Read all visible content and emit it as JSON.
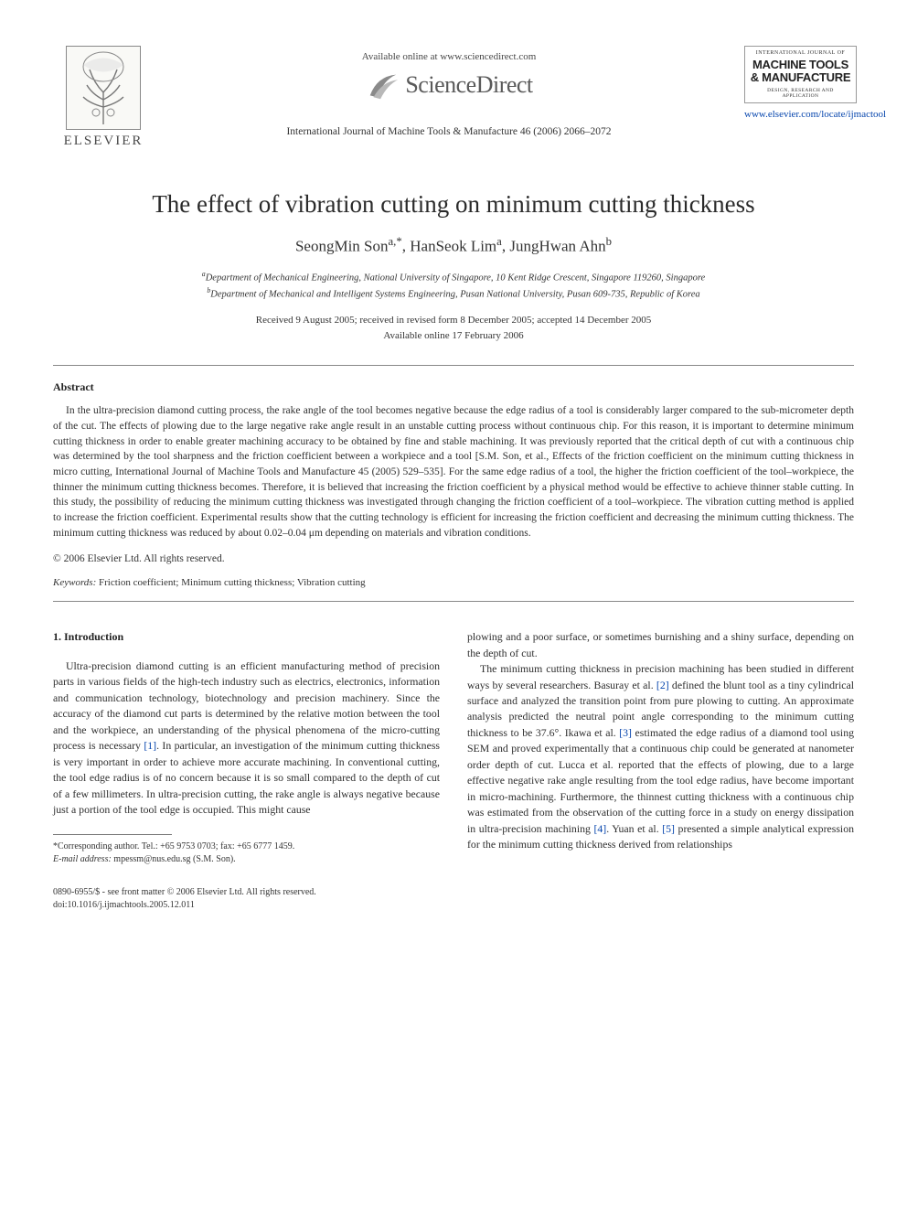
{
  "header": {
    "publisher_name": "ELSEVIER",
    "available_online": "Available online at www.sciencedirect.com",
    "sciencedirect": "ScienceDirect",
    "citation": "International Journal of Machine Tools & Manufacture 46 (2006) 2066–2072",
    "journal_cover": {
      "topline": "INTERNATIONAL JOURNAL OF",
      "title": "MACHINE TOOLS & MANUFACTURE",
      "subline": "DESIGN, RESEARCH AND APPLICATION"
    },
    "locate_url": "www.elsevier.com/locate/ijmactool"
  },
  "article": {
    "title": "The effect of vibration cutting on minimum cutting thickness",
    "authors_html": "SeongMin Son<sup>a,*</sup>, HanSeok Lim<sup>a</sup>, JungHwan Ahn<sup>b</sup>",
    "affiliations": {
      "a": "Department of Mechanical Engineering, National University of Singapore, 10 Kent Ridge Crescent, Singapore 119260, Singapore",
      "b": "Department of Mechanical and Intelligent Systems Engineering, Pusan National University, Pusan 609-735, Republic of Korea"
    },
    "dates": {
      "line1": "Received 9 August 2005; received in revised form 8 December 2005; accepted 14 December 2005",
      "line2": "Available online 17 February 2006"
    }
  },
  "abstract": {
    "heading": "Abstract",
    "body": "In the ultra-precision diamond cutting process, the rake angle of the tool becomes negative because the edge radius of a tool is considerably larger compared to the sub-micrometer depth of the cut. The effects of plowing due to the large negative rake angle result in an unstable cutting process without continuous chip. For this reason, it is important to determine minimum cutting thickness in order to enable greater machining accuracy to be obtained by fine and stable machining. It was previously reported that the critical depth of cut with a continuous chip was determined by the tool sharpness and the friction coefficient between a workpiece and a tool [S.M. Son, et al., Effects of the friction coefficient on the minimum cutting thickness in micro cutting, International Journal of Machine Tools and Manufacture 45 (2005) 529–535]. For the same edge radius of a tool, the higher the friction coefficient of the tool–workpiece, the thinner the minimum cutting thickness becomes. Therefore, it is believed that increasing the friction coefficient by a physical method would be effective to achieve thinner stable cutting. In this study, the possibility of reducing the minimum cutting thickness was investigated through changing the friction coefficient of a tool–workpiece. The vibration cutting method is applied to increase the friction coefficient. Experimental results show that the cutting technology is efficient for increasing the friction coefficient and decreasing the minimum cutting thickness. The minimum cutting thickness was reduced by about 0.02–0.04 μm depending on materials and vibration conditions.",
    "copyright": "© 2006 Elsevier Ltd. All rights reserved.",
    "keywords_label": "Keywords:",
    "keywords": "Friction coefficient; Minimum cutting thickness; Vibration cutting"
  },
  "body": {
    "section1_heading": "1. Introduction",
    "col1_p1_a": "Ultra-precision diamond cutting is an efficient manufacturing method of precision parts in various fields of the high-tech industry such as electrics, electronics, information and communication technology, biotechnology and precision machinery. Since the accuracy of the diamond cut parts is determined by the relative motion between the tool and the workpiece, an understanding of the physical phenomena of the micro-cutting process is necessary ",
    "ref1": "[1]",
    "col1_p1_b": ". In particular, an investigation of the minimum cutting thickness is very important in order to achieve more accurate machining. In conventional cutting, the tool edge radius is of no concern because it is so small compared to the depth of cut of a few millimeters. In ultra-precision cutting, the rake angle is always negative because just a portion of the tool edge is occupied. This might cause",
    "col2_p1": "plowing and a poor surface, or sometimes burnishing and a shiny surface, depending on the depth of cut.",
    "col2_p2_a": "The minimum cutting thickness in precision machining has been studied in different ways by several researchers. Basuray et al. ",
    "ref2": "[2]",
    "col2_p2_b": " defined the blunt tool as a tiny cylindrical surface and analyzed the transition point from pure plowing to cutting. An approximate analysis predicted the neutral point angle corresponding to the minimum cutting thickness to be 37.6°. Ikawa et al. ",
    "ref3": "[3]",
    "col2_p2_c": " estimated the edge radius of a diamond tool using SEM and proved experimentally that a continuous chip could be generated at nanometer order depth of cut. Lucca et al. reported that the effects of plowing, due to a large effective negative rake angle resulting from the tool edge radius, have become important in micro-machining. Furthermore, the thinnest cutting thickness with a continuous chip was estimated from the observation of the cutting force in a study on energy dissipation in ultra-precision machining ",
    "ref4": "[4]",
    "col2_p2_d": ". Yuan et al. ",
    "ref5": "[5]",
    "col2_p2_e": " presented a simple analytical expression for the minimum cutting thickness derived from relationships"
  },
  "footnotes": {
    "corresponding": "*Corresponding author. Tel.: +65 9753 0703; fax: +65 6777 1459.",
    "email_label": "E-mail address:",
    "email": "mpessm@nus.edu.sg (S.M. Son)."
  },
  "footer": {
    "issn_line": "0890-6955/$ - see front matter © 2006 Elsevier Ltd. All rights reserved.",
    "doi_line": "doi:10.1016/j.ijmachtools.2005.12.011"
  },
  "colors": {
    "link": "#0645ad",
    "text": "#2f2f2f",
    "rule": "#888888"
  }
}
